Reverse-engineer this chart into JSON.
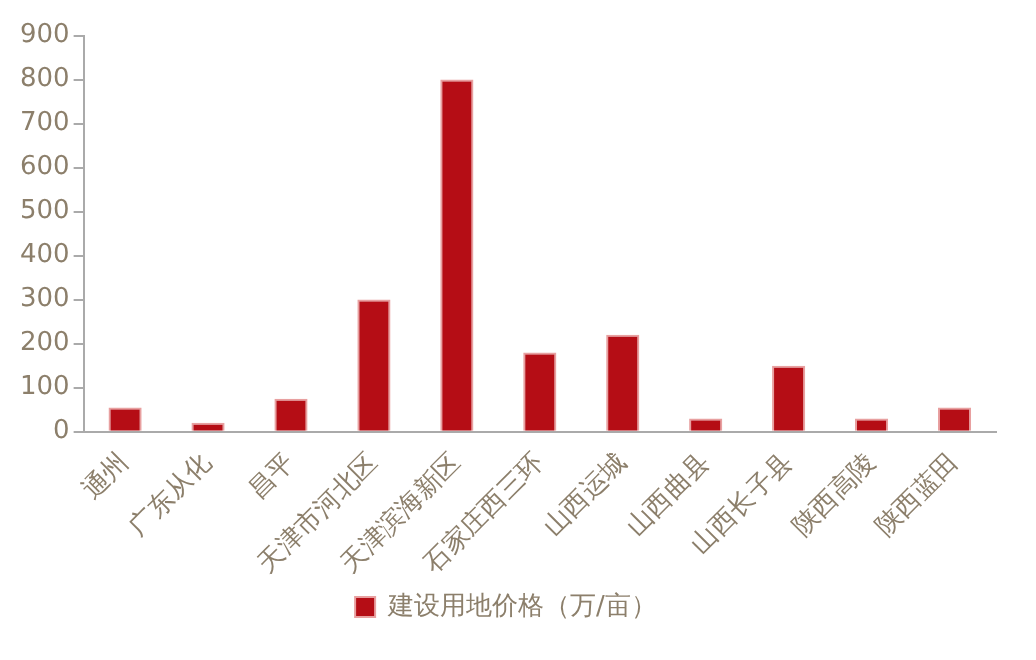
{
  "chart_data": {
    "type": "bar",
    "categories": [
      "通州",
      "广东从化",
      "昌平",
      "天津市河北区",
      "天津滨海新区",
      "石家庄西三环",
      "山西运城",
      "山西曲县",
      "山西长子县",
      "陕西高陵",
      "陕西蓝田"
    ],
    "series": [
      {
        "name": "建设用地价格（万/亩）",
        "color": "#b50d15",
        "values": [
          55,
          20,
          75,
          300,
          800,
          180,
          220,
          30,
          150,
          30,
          55
        ]
      }
    ],
    "ylim": [
      0,
      900
    ],
    "yticks": [
      0,
      100,
      200,
      300,
      400,
      500,
      600,
      700,
      800,
      900
    ],
    "grid": false,
    "legend": "bottom"
  }
}
